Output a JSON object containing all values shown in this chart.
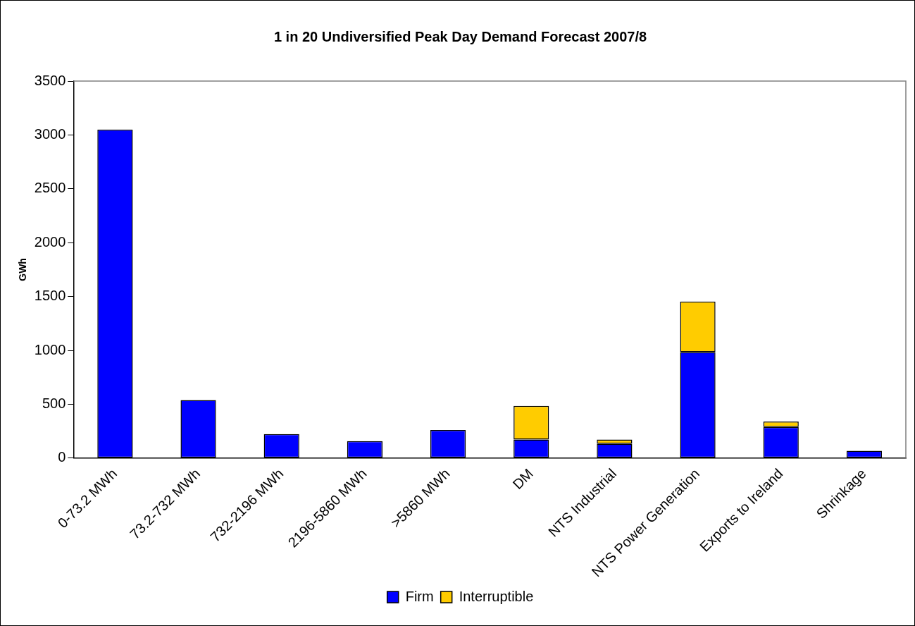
{
  "chart_data": {
    "type": "bar",
    "title": "1 in 20 Undiversified Peak Day Demand Forecast 2007/8",
    "ylabel": "GWh",
    "categories": [
      "0-73.2 MWh",
      "73.2-732 MWh",
      "732-2196 MWh",
      "2196-5860 MWh",
      ">5860 MWh",
      "DM",
      "NTS Industrial",
      "NTS Power Generation",
      "Exports to Ireland",
      "Shrinkage"
    ],
    "series": [
      {
        "name": "Firm",
        "color": "#0000ff",
        "values": [
          3050,
          538,
          223,
          157,
          261,
          172,
          133,
          984,
          288,
          68
        ]
      },
      {
        "name": "Interruptible",
        "color": "#ffcc00",
        "values": [
          null,
          null,
          null,
          null,
          null,
          313,
          39,
          469,
          52,
          null
        ]
      }
    ],
    "stacked": true,
    "ylim": [
      0,
      3500
    ],
    "yticks": [
      0,
      500,
      1000,
      1500,
      2000,
      2500,
      3000,
      3500
    ],
    "grid": false,
    "legend": "bottom"
  }
}
